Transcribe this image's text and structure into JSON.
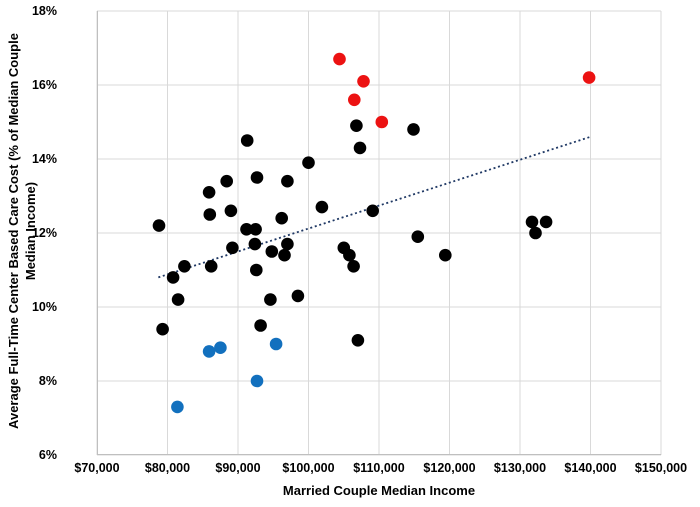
{
  "colors": {
    "background": "#FFFFFF",
    "gridline": "#D9D9D9",
    "axis_line": "#BFBFBF",
    "text": "#000000",
    "black_series": "#000000",
    "red_series": "#EC1212",
    "blue_series": "#1270BE",
    "trendline": "#1F3864"
  },
  "chart_data": {
    "type": "scatter",
    "title": "",
    "xlabel": "Married Couple Median Income",
    "ylabel": "Average Full-Time Center Based Care Cost (% of Median Couple Median Income)",
    "ylabel_lines": [
      "Average Full-Time Center Based Care Cost (% of Median Couple",
      "Median Income)"
    ],
    "xlim": [
      70000,
      150000
    ],
    "ylim": [
      6,
      18
    ],
    "grid": true,
    "legend": "none",
    "xticks": [
      {
        "value": 70000,
        "label": "$70,000"
      },
      {
        "value": 80000,
        "label": "$80,000"
      },
      {
        "value": 90000,
        "label": "$90,000"
      },
      {
        "value": 100000,
        "label": "$100,000"
      },
      {
        "value": 110000,
        "label": "$110,000"
      },
      {
        "value": 120000,
        "label": "$120,000"
      },
      {
        "value": 130000,
        "label": "$130,000"
      },
      {
        "value": 140000,
        "label": "$140,000"
      },
      {
        "value": 150000,
        "label": "$150,000"
      }
    ],
    "yticks": [
      {
        "value": 18,
        "label": "18%"
      },
      {
        "value": 16,
        "label": "16%"
      },
      {
        "value": 14,
        "label": "14%"
      },
      {
        "value": 12,
        "label": "12%"
      },
      {
        "value": 10,
        "label": "10%"
      },
      {
        "value": 8,
        "label": "8%"
      },
      {
        "value": 6,
        "label": "6%"
      }
    ],
    "series": [
      {
        "name": "black",
        "color": "#000000",
        "points": [
          [
            91300,
            14.5
          ],
          [
            100000,
            13.9
          ],
          [
            106800,
            14.9
          ],
          [
            107300,
            14.3
          ],
          [
            114900,
            14.8
          ],
          [
            92700,
            13.5
          ],
          [
            97000,
            13.4
          ],
          [
            88400,
            13.4
          ],
          [
            85900,
            13.1
          ],
          [
            86000,
            12.5
          ],
          [
            89000,
            12.6
          ],
          [
            78800,
            12.2
          ],
          [
            91200,
            12.1
          ],
          [
            92500,
            12.1
          ],
          [
            96200,
            12.4
          ],
          [
            101900,
            12.7
          ],
          [
            109100,
            12.6
          ],
          [
            89200,
            11.6
          ],
          [
            92400,
            11.7
          ],
          [
            94800,
            11.5
          ],
          [
            97000,
            11.7
          ],
          [
            96600,
            11.4
          ],
          [
            86200,
            11.1
          ],
          [
            82400,
            11.1
          ],
          [
            80800,
            10.8
          ],
          [
            92600,
            11.0
          ],
          [
            81500,
            10.2
          ],
          [
            94600,
            10.2
          ],
          [
            98500,
            10.3
          ],
          [
            79300,
            9.4
          ],
          [
            93200,
            9.5
          ],
          [
            107000,
            9.1
          ],
          [
            105000,
            11.6
          ],
          [
            105800,
            11.4
          ],
          [
            106400,
            11.1
          ],
          [
            115500,
            11.9
          ],
          [
            119400,
            11.4
          ],
          [
            131700,
            12.3
          ],
          [
            133700,
            12.3
          ],
          [
            132200,
            12.0
          ]
        ]
      },
      {
        "name": "blue",
        "color": "#1270BE",
        "points": [
          [
            81400,
            7.3
          ],
          [
            85900,
            8.8
          ],
          [
            87500,
            8.9
          ],
          [
            92700,
            8.0
          ],
          [
            95400,
            9.0
          ]
        ]
      },
      {
        "name": "red",
        "color": "#EC1212",
        "points": [
          [
            104400,
            16.7
          ],
          [
            107800,
            16.1
          ],
          [
            106500,
            15.6
          ],
          [
            110400,
            15.0
          ],
          [
            139800,
            16.2
          ]
        ]
      }
    ],
    "trendline": {
      "style": "dotted",
      "color": "#1F3864",
      "x1": 78700,
      "y1": 10.8,
      "x2": 140000,
      "y2": 14.6
    }
  }
}
